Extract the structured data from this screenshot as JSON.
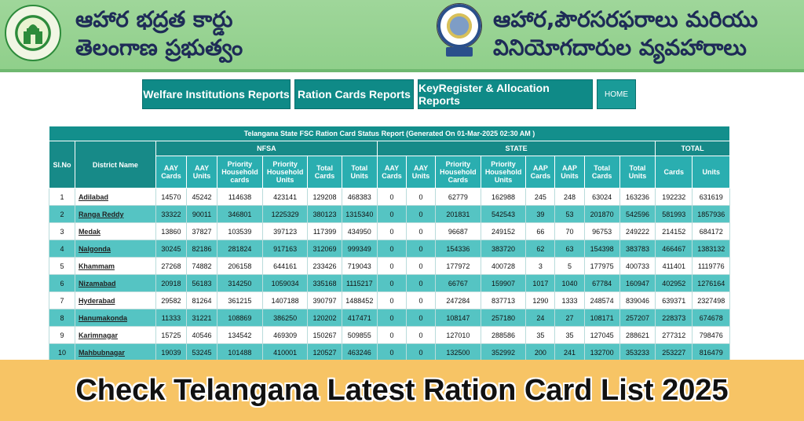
{
  "header": {
    "left_title_line1": "ఆహార భద్రత కార్డు",
    "left_title_line2": "తెలంగాణ ప్రభుత్వం",
    "right_title_line1": "ఆహార,పౌరసరఫరాలు మరియు",
    "right_title_line2": "వినియోగదారుల వ్యవహారాలు",
    "left_logo_icon": "telangana-emblem-icon",
    "right_logo_icon": "civil-supplies-emblem-icon"
  },
  "nav": {
    "welfare": "Welfare Institutions Reports",
    "ration": "Ration Cards Reports",
    "key": "KeyRegister & Allocation Reports",
    "home": "HOME"
  },
  "table": {
    "caption": "Telangana State FSC Ration Card Status Report (Generated On 01-Mar-2025 02:30 AM )",
    "col_slno": "Sl.No",
    "col_district": "District Name",
    "group_nfsa": "NFSA",
    "group_state": "STATE",
    "group_total": "TOTAL",
    "sub_headers": [
      "AAY Cards",
      "AAY Units",
      "Priority Household cards",
      "Priority Household Units",
      "Total Cards",
      "Total Units",
      "AAY Cards",
      "AAY Units",
      "Priority Household Cards",
      "Priority Household Units",
      "AAP Cards",
      "AAP Units",
      "Total Cards",
      "Total Units",
      "Cards",
      "Units"
    ],
    "rows": [
      {
        "sl": "1",
        "district": "Adilabad",
        "v": [
          "14570",
          "45242",
          "114638",
          "423141",
          "129208",
          "468383",
          "0",
          "0",
          "62779",
          "162988",
          "245",
          "248",
          "63024",
          "163236",
          "192232",
          "631619"
        ]
      },
      {
        "sl": "2",
        "district": "Ranga Reddy",
        "v": [
          "33322",
          "90011",
          "346801",
          "1225329",
          "380123",
          "1315340",
          "0",
          "0",
          "201831",
          "542543",
          "39",
          "53",
          "201870",
          "542596",
          "581993",
          "1857936"
        ]
      },
      {
        "sl": "3",
        "district": "Medak",
        "v": [
          "13860",
          "37827",
          "103539",
          "397123",
          "117399",
          "434950",
          "0",
          "0",
          "96687",
          "249152",
          "66",
          "70",
          "96753",
          "249222",
          "214152",
          "684172"
        ]
      },
      {
        "sl": "4",
        "district": "Nalgonda",
        "v": [
          "30245",
          "82186",
          "281824",
          "917163",
          "312069",
          "999349",
          "0",
          "0",
          "154336",
          "383720",
          "62",
          "63",
          "154398",
          "383783",
          "466467",
          "1383132"
        ]
      },
      {
        "sl": "5",
        "district": "Khammam",
        "v": [
          "27268",
          "74882",
          "206158",
          "644161",
          "233426",
          "719043",
          "0",
          "0",
          "177972",
          "400728",
          "3",
          "5",
          "177975",
          "400733",
          "411401",
          "1119776"
        ]
      },
      {
        "sl": "6",
        "district": "Nizamabad",
        "v": [
          "20918",
          "56183",
          "314250",
          "1059034",
          "335168",
          "1115217",
          "0",
          "0",
          "66767",
          "159907",
          "1017",
          "1040",
          "67784",
          "160947",
          "402952",
          "1276164"
        ]
      },
      {
        "sl": "7",
        "district": "Hyderabad",
        "v": [
          "29582",
          "81264",
          "361215",
          "1407188",
          "390797",
          "1488452",
          "0",
          "0",
          "247284",
          "837713",
          "1290",
          "1333",
          "248574",
          "839046",
          "639371",
          "2327498"
        ]
      },
      {
        "sl": "8",
        "district": "Hanumakonda",
        "v": [
          "11333",
          "31221",
          "108869",
          "386250",
          "120202",
          "417471",
          "0",
          "0",
          "108147",
          "257180",
          "24",
          "27",
          "108171",
          "257207",
          "228373",
          "674678"
        ]
      },
      {
        "sl": "9",
        "district": "Karimnagar",
        "v": [
          "15725",
          "40546",
          "134542",
          "469309",
          "150267",
          "509855",
          "0",
          "0",
          "127010",
          "288586",
          "35",
          "35",
          "127045",
          "288621",
          "277312",
          "798476"
        ]
      },
      {
        "sl": "10",
        "district": "Mahbubnagar",
        "v": [
          "19039",
          "53245",
          "101488",
          "410001",
          "120527",
          "463246",
          "0",
          "0",
          "132500",
          "352992",
          "200",
          "241",
          "132700",
          "353233",
          "253227",
          "816479"
        ]
      }
    ]
  },
  "banner": {
    "text": "Check Telangana Latest Ration Card List 2025"
  },
  "colors": {
    "header_green": "#9fd69a",
    "nav_teal": "#0f8a87",
    "table_teal": "#3cb5b4",
    "banner_yellow": "#f7c465"
  }
}
